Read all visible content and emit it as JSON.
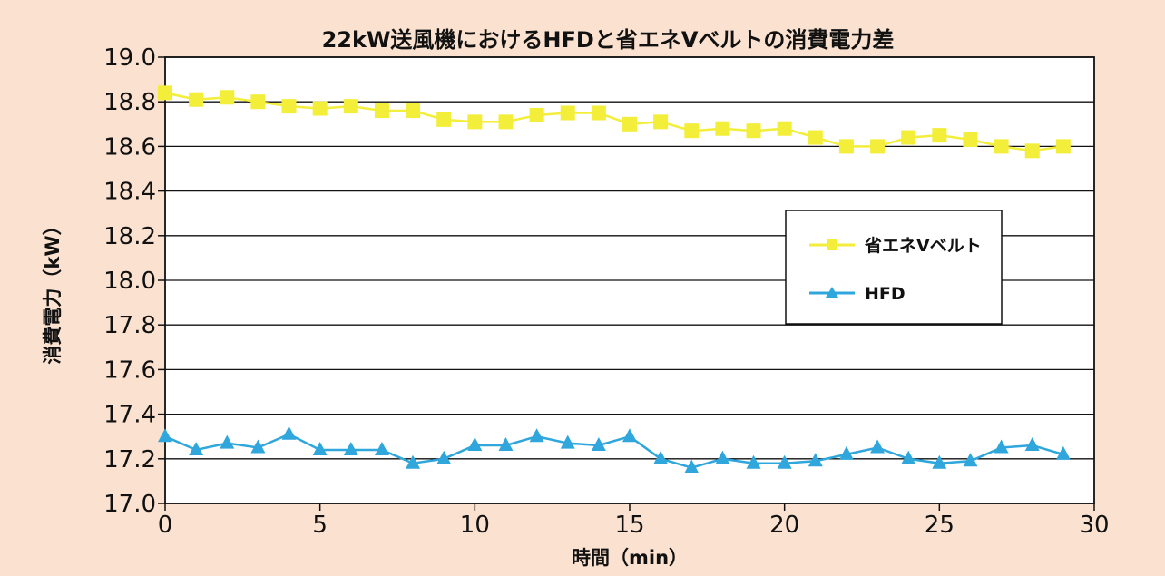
{
  "chart_data": {
    "type": "line",
    "title": "22kW送風機におけるHFDと省エネVベルトの消費電力差",
    "xlabel": "時間（min）",
    "ylabel": "消費電力（kW）",
    "xlim": [
      0,
      30
    ],
    "ylim": [
      17.0,
      19.0
    ],
    "x_ticks": [
      "0",
      "5",
      "10",
      "15",
      "20",
      "25",
      "30"
    ],
    "y_ticks": [
      "17.0",
      "17.2",
      "17.4",
      "17.6",
      "17.8",
      "18.0",
      "18.2",
      "18.4",
      "18.6",
      "18.8",
      "19.0"
    ],
    "grid": "horizontal",
    "legend_position": "center-right",
    "x": [
      0,
      1,
      2,
      3,
      4,
      5,
      6,
      7,
      8,
      9,
      10,
      11,
      12,
      13,
      14,
      15,
      16,
      17,
      18,
      19,
      20,
      21,
      22,
      23,
      24,
      25,
      26,
      27,
      28,
      29
    ],
    "series": [
      {
        "name": "省エネVベルト",
        "marker": "square",
        "color": "#f2ee3a",
        "values": [
          18.84,
          18.81,
          18.82,
          18.8,
          18.78,
          18.77,
          18.78,
          18.76,
          18.76,
          18.72,
          18.71,
          18.71,
          18.74,
          18.75,
          18.75,
          18.7,
          18.71,
          18.67,
          18.68,
          18.67,
          18.68,
          18.64,
          18.6,
          18.6,
          18.64,
          18.65,
          18.63,
          18.6,
          18.58,
          18.6
        ]
      },
      {
        "name": "HFD",
        "marker": "triangle",
        "color": "#2fa6dc",
        "values": [
          17.3,
          17.24,
          17.27,
          17.25,
          17.31,
          17.24,
          17.24,
          17.24,
          17.18,
          17.2,
          17.26,
          17.26,
          17.3,
          17.27,
          17.26,
          17.3,
          17.2,
          17.16,
          17.2,
          17.18,
          17.18,
          17.19,
          17.22,
          17.25,
          17.2,
          17.18,
          17.19,
          17.25,
          17.26,
          17.22
        ]
      }
    ]
  }
}
